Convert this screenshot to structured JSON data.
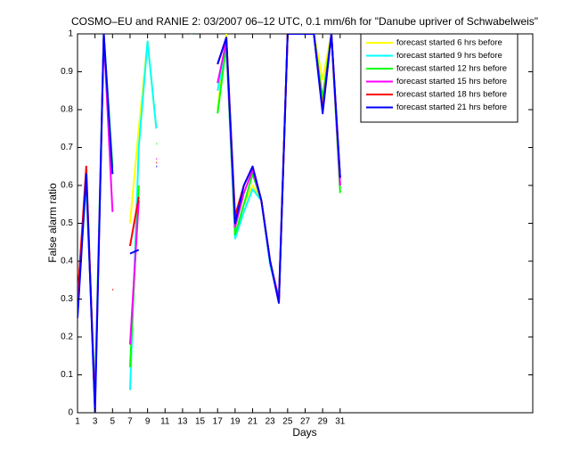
{
  "chart_data": {
    "type": "line",
    "title": "COSMO–EU and RANIE 2: 03/2007 06–12 UTC, 0.1 mm/6h for \"Danube upriver of Schwabelweis\"",
    "x_label": "Days",
    "y_label": "False alarm ratio",
    "x": [
      1,
      2,
      3,
      4,
      5,
      6,
      7,
      8,
      9,
      10,
      11,
      12,
      13,
      14,
      15,
      16,
      17,
      18,
      19,
      20,
      21,
      22,
      23,
      24,
      25,
      26,
      27,
      28,
      29,
      30,
      31
    ],
    "series": [
      {
        "name": "forecast started 6 hrs before",
        "color": "#ffff00",
        "values": [
          0.3,
          0.6,
          0.05,
          1.0,
          0.63,
          null,
          0.5,
          0.75,
          0.98,
          0.75,
          null,
          null,
          null,
          1.0,
          null,
          null,
          0.8,
          1.0,
          0.47,
          0.55,
          0.6,
          0.56,
          0.4,
          0.3,
          1.0,
          1.0,
          1.0,
          1.0,
          0.88,
          1.0,
          0.6
        ]
      },
      {
        "name": "forecast started 9 hrs before",
        "color": "#00ffff",
        "values": [
          0.3,
          0.6,
          0.05,
          1.0,
          0.63,
          null,
          0.06,
          0.7,
          0.98,
          0.75,
          null,
          null,
          null,
          1.0,
          null,
          null,
          0.85,
          0.97,
          0.46,
          0.53,
          0.59,
          0.56,
          0.39,
          0.3,
          1.0,
          1.0,
          1.0,
          1.0,
          0.82,
          1.0,
          0.6
        ]
      },
      {
        "name": "forecast started 12 hrs before",
        "color": "#00ff00",
        "values": [
          0.3,
          0.62,
          0.03,
          1.0,
          0.65,
          null,
          0.12,
          0.6,
          null,
          0.71,
          null,
          null,
          null,
          null,
          null,
          null,
          0.79,
          0.97,
          0.47,
          0.55,
          0.63,
          0.56,
          0.4,
          0.3,
          1.0,
          1.0,
          1.0,
          1.0,
          0.83,
          1.0,
          0.58
        ]
      },
      {
        "name": "forecast started 15 hrs before",
        "color": "#ff00ff",
        "values": [
          0.3,
          0.63,
          0.02,
          1.0,
          0.53,
          null,
          0.18,
          0.56,
          null,
          0.67,
          null,
          null,
          null,
          null,
          null,
          null,
          0.87,
          0.98,
          0.49,
          0.58,
          0.64,
          0.56,
          0.4,
          0.3,
          1.0,
          1.0,
          1.0,
          1.0,
          0.8,
          1.0,
          0.6
        ]
      },
      {
        "name": "forecast started 18 hrs before",
        "color": "#ff0000",
        "values": [
          0.3,
          0.65,
          0.01,
          null,
          0.325,
          null,
          0.44,
          0.57,
          null,
          0.66,
          null,
          null,
          null,
          null,
          null,
          null,
          0.92,
          0.99,
          0.52,
          0.6,
          0.65,
          0.56,
          0.4,
          0.29,
          1.0,
          1.0,
          1.0,
          1.0,
          0.8,
          1.0,
          0.62
        ]
      },
      {
        "name": "forecast started 21 hrs before",
        "color": "#0000ff",
        "values": [
          0.25,
          0.63,
          0.0,
          1.0,
          0.63,
          null,
          0.42,
          0.43,
          null,
          0.65,
          null,
          null,
          null,
          null,
          null,
          null,
          0.92,
          0.99,
          0.5,
          0.6,
          0.65,
          0.56,
          0.4,
          0.29,
          1.0,
          1.0,
          1.0,
          1.0,
          0.79,
          1.0,
          0.62
        ]
      }
    ],
    "xlim": [
      1,
      53
    ],
    "xticks": [
      1,
      3,
      5,
      7,
      9,
      11,
      13,
      15,
      17,
      19,
      21,
      23,
      25,
      27,
      29,
      31
    ],
    "ylim": [
      0,
      1
    ],
    "yticks": [
      0,
      0.1,
      0.2,
      0.3,
      0.4,
      0.5,
      0.6,
      0.7,
      0.8,
      0.9,
      1
    ],
    "legend": "top-right"
  }
}
